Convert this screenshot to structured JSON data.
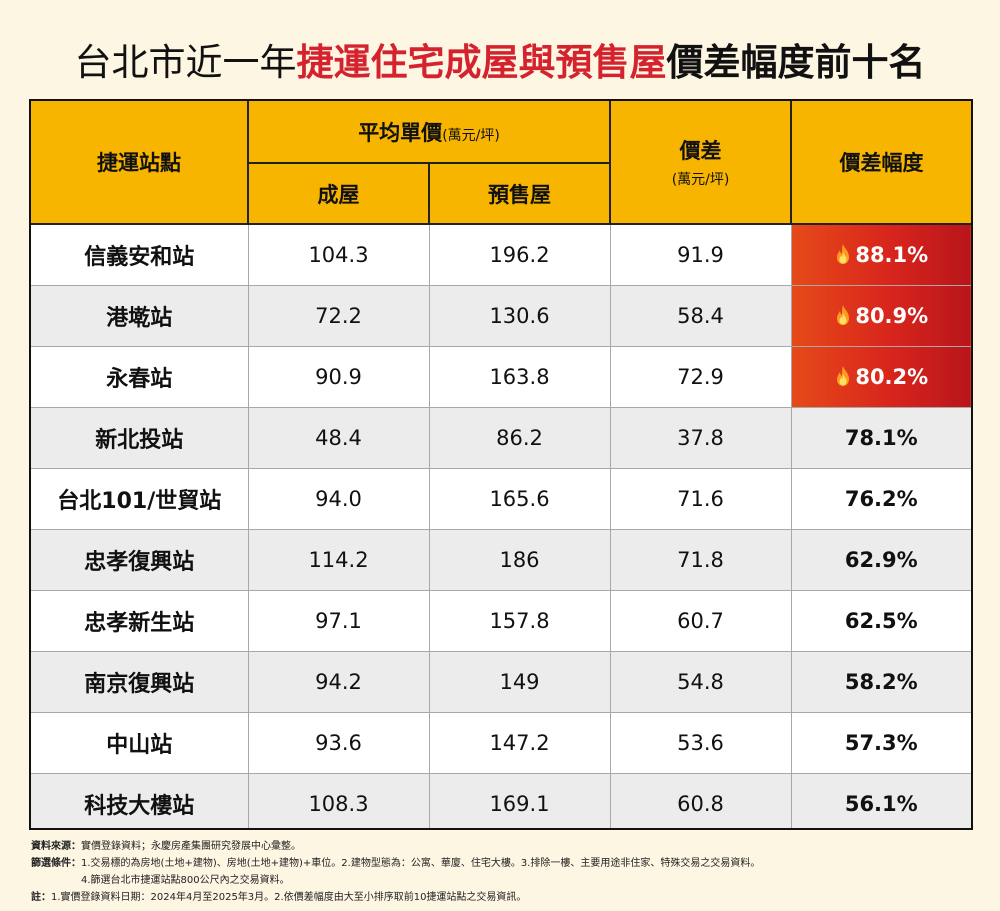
{
  "title": {
    "part1": "台北市近一年",
    "part2": "捷運住宅成屋與預售屋",
    "part3": "價差幅度前十名"
  },
  "header": {
    "station": "捷運站點",
    "avg_price": "平均單價",
    "avg_price_unit": "(萬元/坪)",
    "existing": "成屋",
    "presale": "預售屋",
    "diff": "價差",
    "diff_unit": "(萬元/坪)",
    "diff_pct": "價差幅度"
  },
  "chart_data": {
    "type": "table",
    "columns": [
      "捷運站點",
      "成屋",
      "預售屋",
      "價差",
      "價差幅度"
    ],
    "rows": [
      {
        "station": "信義安和站",
        "existing": "104.3",
        "presale": "196.2",
        "diff": "91.9",
        "pct": "88.1%",
        "hot": true
      },
      {
        "station": "港墘站",
        "existing": "72.2",
        "presale": "130.6",
        "diff": "58.4",
        "pct": "80.9%",
        "hot": true
      },
      {
        "station": "永春站",
        "existing": "90.9",
        "presale": "163.8",
        "diff": "72.9",
        "pct": "80.2%",
        "hot": true
      },
      {
        "station": "新北投站",
        "existing": "48.4",
        "presale": "86.2",
        "diff": "37.8",
        "pct": "78.1%",
        "hot": false
      },
      {
        "station": "台北101/世貿站",
        "existing": "94.0",
        "presale": "165.6",
        "diff": "71.6",
        "pct": "76.2%",
        "hot": false
      },
      {
        "station": "忠孝復興站",
        "existing": "114.2",
        "presale": "186",
        "diff": "71.8",
        "pct": "62.9%",
        "hot": false
      },
      {
        "station": "忠孝新生站",
        "existing": "97.1",
        "presale": "157.8",
        "diff": "60.7",
        "pct": "62.5%",
        "hot": false
      },
      {
        "station": "南京復興站",
        "existing": "94.2",
        "presale": "149",
        "diff": "54.8",
        "pct": "58.2%",
        "hot": false
      },
      {
        "station": "中山站",
        "existing": "93.6",
        "presale": "147.2",
        "diff": "53.6",
        "pct": "57.3%",
        "hot": false
      },
      {
        "station": "科技大樓站",
        "existing": "108.3",
        "presale": "169.1",
        "diff": "60.8",
        "pct": "56.1%",
        "hot": false
      }
    ]
  },
  "notes": {
    "source_label": "資料來源：",
    "source_text": "實價登錄資料；永慶房產集團研究發展中心彙整。",
    "filter_label": "篩選條件：",
    "filter_text": "1.交易標的為房地(土地+建物)、房地(土地+建物)+車位。2.建物型態為：公寓、華廈、住宅大樓。3.排除一樓、主要用途非住家、特殊交易之交易資料。",
    "filter_text2": "4.篩選台北市捷運站點800公尺內之交易資料。",
    "note_label": "註：",
    "note_text": "1.實價登錄資料日期：2024年4月至2025年3月。2.依價差幅度由大至小排序取前10捷運站點之交易資訊。"
  },
  "colors": {
    "header_bg": "#f7b500",
    "hot_bg": "#d8251c",
    "title_accent": "#d4232f",
    "page_bg": "#fdf6e3"
  },
  "icons": {
    "hot": "flame-icon"
  }
}
